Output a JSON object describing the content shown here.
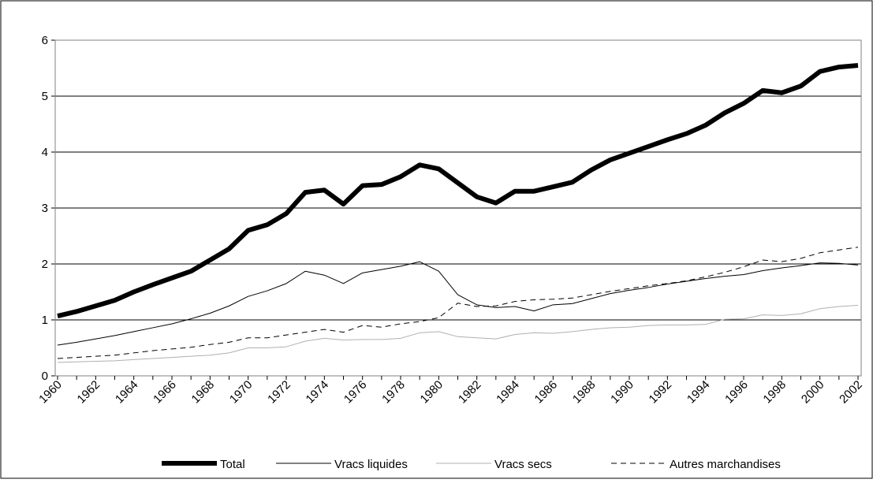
{
  "chart_data": {
    "type": "line",
    "categories": [
      "1960",
      null,
      "1962",
      null,
      "1964",
      null,
      "1966",
      null,
      "1968",
      null,
      "1970",
      null,
      "1972",
      null,
      "1974",
      null,
      "1976",
      null,
      "1978",
      null,
      "1980",
      null,
      "1982",
      null,
      "1984",
      null,
      "1986",
      null,
      "1988",
      null,
      "1990",
      null,
      "1992",
      null,
      "1994",
      null,
      "1996",
      null,
      "1998",
      null,
      "2000",
      null,
      "2002"
    ],
    "series": [
      {
        "name": "Total",
        "color": "#000000",
        "values": [
          1.07,
          1.15,
          1.25,
          1.35,
          1.5,
          1.63,
          1.75,
          1.87,
          2.07,
          2.27,
          2.6,
          2.7,
          2.9,
          3.28,
          3.32,
          3.07,
          3.4,
          3.42,
          3.56,
          3.77,
          3.7,
          3.45,
          3.2,
          3.09,
          3.3,
          3.3,
          3.38,
          3.46,
          3.68,
          3.86,
          3.98,
          4.1,
          4.22,
          4.33,
          4.48,
          4.7,
          4.87,
          5.1,
          5.06,
          5.18,
          5.44,
          5.52,
          5.55
        ]
      },
      {
        "name": "Vracs liquides",
        "color": "#000000",
        "values": [
          0.55,
          0.6,
          0.66,
          0.72,
          0.79,
          0.86,
          0.93,
          1.02,
          1.12,
          1.25,
          1.42,
          1.52,
          1.65,
          1.87,
          1.8,
          1.65,
          1.84,
          1.9,
          1.96,
          2.04,
          1.87,
          1.45,
          1.27,
          1.22,
          1.24,
          1.16,
          1.27,
          1.29,
          1.38,
          1.47,
          1.53,
          1.58,
          1.64,
          1.69,
          1.74,
          1.78,
          1.81,
          1.88,
          1.93,
          1.97,
          2.02,
          2.01,
          1.98
        ]
      },
      {
        "name": "Vracs secs",
        "color": "#b0b0b0",
        "values": [
          0.24,
          0.25,
          0.26,
          0.27,
          0.29,
          0.31,
          0.33,
          0.35,
          0.37,
          0.41,
          0.5,
          0.5,
          0.52,
          0.62,
          0.67,
          0.64,
          0.65,
          0.65,
          0.67,
          0.77,
          0.79,
          0.7,
          0.68,
          0.66,
          0.74,
          0.77,
          0.76,
          0.79,
          0.83,
          0.86,
          0.87,
          0.9,
          0.91,
          0.91,
          0.92,
          1.01,
          1.02,
          1.09,
          1.08,
          1.11,
          1.2,
          1.24,
          1.26
        ]
      },
      {
        "name": "Autres marchandises",
        "color": "#000000",
        "values": [
          0.31,
          0.33,
          0.35,
          0.37,
          0.41,
          0.45,
          0.48,
          0.51,
          0.56,
          0.6,
          0.68,
          0.68,
          0.73,
          0.78,
          0.83,
          0.78,
          0.9,
          0.87,
          0.93,
          0.97,
          1.04,
          1.3,
          1.24,
          1.25,
          1.33,
          1.36,
          1.37,
          1.39,
          1.45,
          1.51,
          1.56,
          1.61,
          1.65,
          1.7,
          1.77,
          1.85,
          1.95,
          2.07,
          2.04,
          2.1,
          2.2,
          2.25,
          2.3
        ]
      }
    ],
    "ylim": [
      0,
      6
    ],
    "yticks": [
      0,
      1,
      2,
      3,
      4,
      5,
      6
    ],
    "grid": true
  }
}
